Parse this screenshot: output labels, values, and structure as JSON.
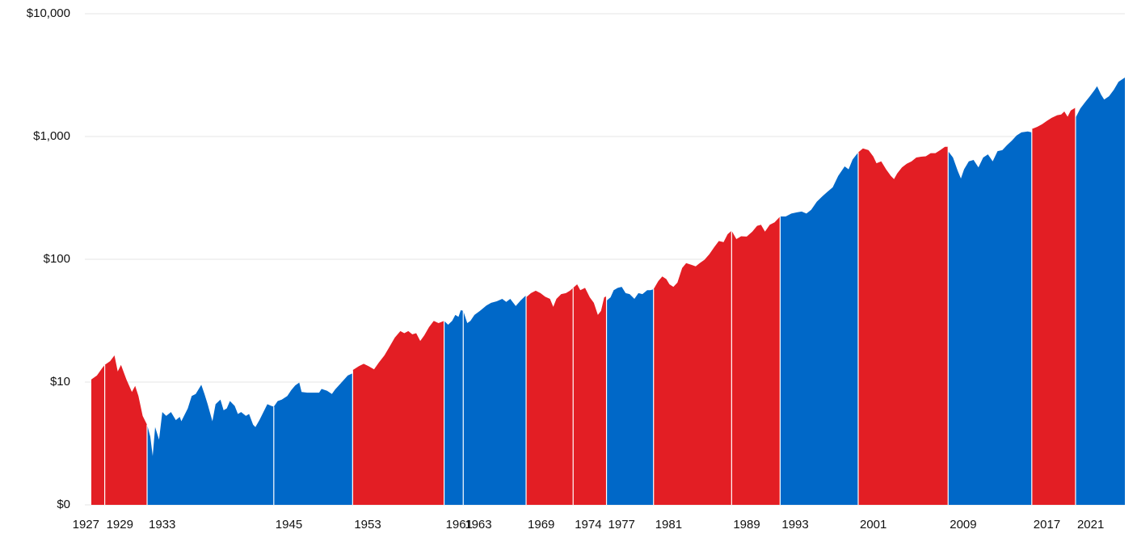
{
  "chart_data": {
    "type": "area",
    "yscale": "log",
    "grid": true,
    "xlim": [
      1927.9,
      2025.72
    ],
    "ylim": [
      1,
      10000
    ],
    "yticks": [
      {
        "value": 1,
        "label": "$0"
      },
      {
        "value": 10,
        "label": "$10"
      },
      {
        "value": 100,
        "label": "$100"
      },
      {
        "value": 1000,
        "label": "$1,000"
      },
      {
        "value": 10000,
        "label": "$10,000"
      }
    ],
    "series": [
      {
        "name": "1927",
        "color": "#e31e24",
        "x": [
          1927.9,
          1928.43,
          1928.96,
          1929.17
        ],
        "values": [
          10.5,
          11.3,
          13.1,
          13.8
        ]
      },
      {
        "name": "1929",
        "color": "#e31e24",
        "x": [
          1929.17,
          1929.68,
          1930.09,
          1930.4,
          1930.71,
          1931.22,
          1931.74,
          1932.05,
          1932.36,
          1932.76,
          1933.17
        ],
        "values": [
          13.8,
          14.8,
          16.5,
          12.2,
          13.8,
          10.5,
          8.3,
          9.3,
          7.7,
          5.3,
          4.5
        ]
      },
      {
        "name": "1933",
        "color": "#0068c8",
        "x": [
          1933.18,
          1933.48,
          1933.71,
          1933.94,
          1934.31,
          1934.62,
          1934.99,
          1935.44,
          1935.9,
          1936.27,
          1936.42,
          1937.03,
          1937.4,
          1937.78,
          1938.31,
          1938.61,
          1938.91,
          1939.36,
          1939.66,
          1940.12,
          1940.42,
          1940.72,
          1941.02,
          1941.47,
          1941.77,
          1942.08,
          1942.53,
          1942.83,
          1943.21,
          1943.43,
          1943.81,
          1944.19,
          1944.56,
          1944.94,
          1945.17
        ],
        "values": [
          4.5,
          3.6,
          2.5,
          4.3,
          3.4,
          5.7,
          5.3,
          5.7,
          4.9,
          5.2,
          4.8,
          6.1,
          7.7,
          8.0,
          9.5,
          8.0,
          6.6,
          4.8,
          6.6,
          7.2,
          5.9,
          6.1,
          7.0,
          6.4,
          5.5,
          5.7,
          5.3,
          5.5,
          4.5,
          4.3,
          4.9,
          5.7,
          6.6,
          6.4,
          6.3
        ]
      },
      {
        "name": "1945",
        "color": "#0068c8",
        "x": [
          1945.17,
          1945.54,
          1945.92,
          1946.45,
          1946.82,
          1947.2,
          1947.58,
          1947.8,
          1948.33,
          1948.86,
          1949.46,
          1949.69,
          1950.21,
          1950.67,
          1950.97,
          1951.57,
          1952.17,
          1952.63
        ],
        "values": [
          6.3,
          7.0,
          7.2,
          7.7,
          8.6,
          9.4,
          9.9,
          8.3,
          8.2,
          8.2,
          8.2,
          8.8,
          8.5,
          8.0,
          8.7,
          9.9,
          11.3,
          11.8
        ]
      },
      {
        "name": "1953",
        "color": "#e31e24",
        "x": [
          1952.63,
          1953.23,
          1953.68,
          1954.13,
          1954.66,
          1955.11,
          1955.64,
          1956.09,
          1956.62,
          1957.15,
          1957.52,
          1957.9,
          1958.28,
          1958.65,
          1959.03,
          1959.41,
          1959.86,
          1960.31,
          1960.76,
          1961.29
        ],
        "values": [
          12.5,
          13.5,
          14.1,
          13.5,
          12.7,
          14.4,
          16.5,
          19.2,
          23,
          26,
          25,
          26,
          24.5,
          25,
          21.6,
          24,
          28,
          31.5,
          30.2,
          31.5
        ]
      },
      {
        "name": "1961",
        "color": "#0068c8",
        "x": [
          1961.29,
          1961.67,
          1962.05,
          1962.35,
          1962.65,
          1962.87,
          1963.1
        ],
        "values": [
          31.5,
          29.3,
          31.5,
          35.2,
          34,
          38.5,
          38
        ]
      },
      {
        "name": "1963",
        "color": "#0068c8",
        "x": [
          1963.1,
          1963.48,
          1963.78,
          1964.16,
          1964.68,
          1965.29,
          1965.74,
          1966.27,
          1966.79,
          1967.17,
          1967.55,
          1968.07,
          1968.53,
          1969.05
        ],
        "values": [
          38,
          30.2,
          31.5,
          35.2,
          38,
          42,
          44.2,
          45.5,
          47.6,
          45,
          47.6,
          41.6,
          46.2,
          51
        ]
      },
      {
        "name": "1969",
        "color": "#e31e24",
        "x": [
          1969.05,
          1969.51,
          1969.96,
          1970.41,
          1970.86,
          1971.31,
          1971.62,
          1971.92,
          1972.37,
          1972.82,
          1973.2,
          1973.5
        ],
        "values": [
          49,
          53,
          55.5,
          53,
          49.5,
          47.6,
          41,
          47.6,
          52,
          53,
          55.5,
          58.5
        ]
      },
      {
        "name": "1974",
        "color": "#e31e24",
        "x": [
          1973.5,
          1973.88,
          1974.18,
          1974.63,
          1975.08,
          1975.46,
          1975.84,
          1976.14,
          1976.44,
          1976.66
        ],
        "values": [
          58.5,
          62.5,
          56,
          58.5,
          49,
          44.2,
          35.2,
          38,
          49,
          50
        ]
      },
      {
        "name": "1977",
        "color": "#0068c8",
        "x": [
          1976.66,
          1977.04,
          1977.34,
          1977.72,
          1978.1,
          1978.47,
          1978.85,
          1979.3,
          1979.68,
          1980.06,
          1980.51,
          1980.81,
          1981.11
        ],
        "values": [
          46,
          49,
          56,
          58.5,
          59.6,
          53,
          52,
          47.6,
          53,
          52,
          56,
          56,
          57
        ]
      },
      {
        "name": "1981",
        "color": "#e31e24",
        "x": [
          1981.11,
          1981.56,
          1981.94,
          1982.32,
          1982.62,
          1982.99,
          1983.37,
          1983.82,
          1984.2,
          1984.73,
          1985.1,
          1985.48,
          1985.93,
          1986.39,
          1986.84,
          1987.29,
          1987.74,
          1988.12,
          1988.5
        ],
        "values": [
          57,
          66.4,
          72.5,
          69,
          62.5,
          59.6,
          64.6,
          85,
          93,
          90,
          87.5,
          93,
          99,
          110,
          125,
          141,
          138,
          160,
          171
        ]
      },
      {
        "name": "1989",
        "color": "#e31e24",
        "x": [
          1988.5,
          1988.95,
          1989.4,
          1989.93,
          1990.46,
          1990.91,
          1991.28,
          1991.66,
          1992.11,
          1992.57,
          1993.09
        ],
        "values": [
          171,
          146,
          154,
          153,
          168,
          187,
          191,
          168,
          191,
          200,
          223
        ]
      },
      {
        "name": "1993",
        "color": "#0068c8",
        "x": [
          1993.09,
          1993.62,
          1994.15,
          1994.68,
          1995.13,
          1995.58,
          1996.03,
          1996.56,
          1997.09,
          1997.54,
          1998.07,
          1998.59,
          1999.2,
          1999.57,
          1999.95,
          2000.48
        ],
        "values": [
          223,
          223,
          236,
          241,
          245,
          236,
          253,
          294,
          326,
          353,
          386,
          478,
          571,
          540,
          650,
          743
        ]
      },
      {
        "name": "2001",
        "color": "#e31e24",
        "x": [
          2000.48,
          2000.93,
          2001.46,
          2001.91,
          2002.21,
          2002.66,
          2003.12,
          2003.57,
          2003.87,
          2004.17,
          2004.62,
          2005.07,
          2005.53,
          2005.98,
          2006.43,
          2006.88,
          2007.34,
          2007.79,
          2008.24,
          2008.69,
          2008.99
        ],
        "values": [
          743,
          800,
          775,
          688,
          605,
          628,
          540,
          478,
          450,
          500,
          560,
          600,
          628,
          675,
          685,
          690,
          731,
          731,
          775,
          825,
          825
        ]
      },
      {
        "name": "2009",
        "color": "#0068c8",
        "x": [
          2008.99,
          2009.45,
          2009.9,
          2010.2,
          2010.5,
          2010.95,
          2011.4,
          2011.86,
          2012.31,
          2012.76,
          2013.21,
          2013.67,
          2014.12,
          2014.57,
          2015.02,
          2015.47,
          2015.93,
          2016.53,
          2016.91
        ],
        "values": [
          760,
          675,
          525,
          455,
          540,
          628,
          645,
          560,
          675,
          715,
          628,
          760,
          775,
          851,
          925,
          1020,
          1080,
          1100,
          1080
        ]
      },
      {
        "name": "2017",
        "color": "#e31e24",
        "x": [
          2016.91,
          2017.43,
          2017.89,
          2018.34,
          2018.79,
          2019.32,
          2019.69,
          2019.99,
          2020.3,
          2020.6,
          2021.05
        ],
        "values": [
          1150,
          1200,
          1260,
          1340,
          1420,
          1490,
          1510,
          1600,
          1450,
          1630,
          1720
        ]
      },
      {
        "name": "2021",
        "color": "#0068c8",
        "x": [
          2021.05,
          2021.5,
          2021.95,
          2022.41,
          2022.86,
          2023.09,
          2023.46,
          2023.76,
          2024.22,
          2024.67,
          2025.12,
          2025.72
        ],
        "values": [
          1420,
          1690,
          1900,
          2130,
          2400,
          2570,
          2200,
          2000,
          2130,
          2400,
          2790,
          3020
        ]
      }
    ]
  }
}
